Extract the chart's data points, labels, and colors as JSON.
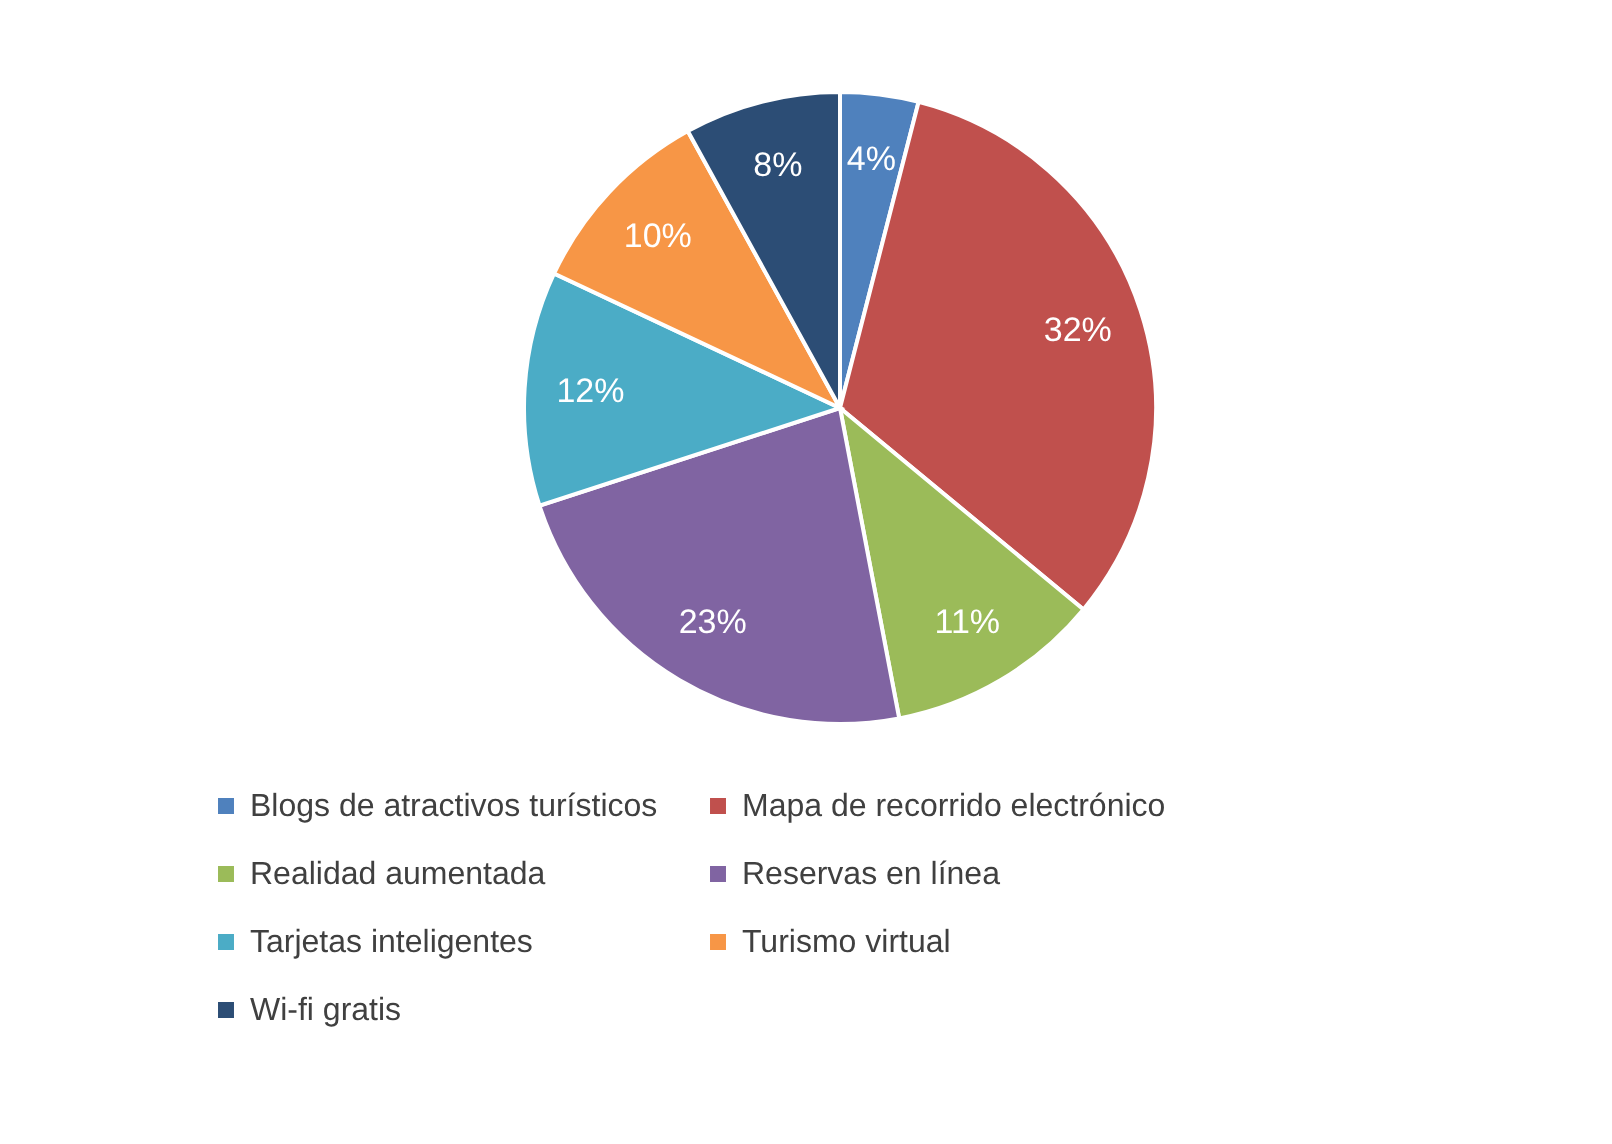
{
  "chart_data": {
    "type": "pie",
    "categories": [
      "Blogs de atractivos turísticos",
      "Mapa de recorrido electrónico",
      "Realidad aumentada",
      "Reservas en línea",
      "Tarjetas inteligentes",
      "Turismo virtual",
      "Wi-fi gratis"
    ],
    "values": [
      4,
      32,
      11,
      23,
      12,
      10,
      8
    ],
    "colors": [
      "#4f81bd",
      "#c0504d",
      "#9bbb59",
      "#8064a2",
      "#4bacc6",
      "#f79646",
      "#2c4d75"
    ],
    "value_labels": [
      "4%",
      "32%",
      "11%",
      "23%",
      "12%",
      "10%",
      "8%"
    ],
    "legend": "bottom"
  }
}
